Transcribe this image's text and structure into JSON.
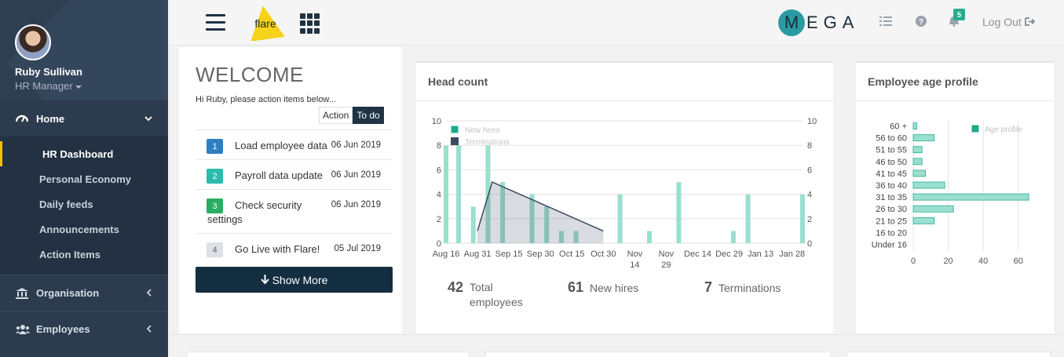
{
  "sidebar": {
    "user_name": "Ruby Sullivan",
    "user_role": "HR Manager",
    "home_label": "Home",
    "sub_items": [
      {
        "label": "HR Dashboard",
        "active": true
      },
      {
        "label": "Personal Economy"
      },
      {
        "label": "Daily feeds"
      },
      {
        "label": "Announcements"
      },
      {
        "label": "Action Items"
      }
    ],
    "organisation_label": "Organisation",
    "employees_label": "Employees",
    "active_accent": "#f2c200"
  },
  "header": {
    "flare_logo_text": "flare",
    "mega_logo_initial": "M",
    "mega_logo_rest": "EGA",
    "notification_count": "5",
    "logout_label": "Log Out"
  },
  "welcome": {
    "title": "WELCOME",
    "subtitle": "Hi Ruby, please action items below...",
    "toggle_action": "Action",
    "toggle_todo": "To do",
    "items": [
      {
        "num": "1",
        "text": "Load employee data",
        "date": "06 Jun 2019",
        "color": "#2d7fc1"
      },
      {
        "num": "2",
        "text": "Payroll data update",
        "date": "06 Jun 2019",
        "color": "#2bbcae"
      },
      {
        "num": "3",
        "text": "Check security settings",
        "date": "06 Jun 2019",
        "color": "#27ae60"
      },
      {
        "num": "4",
        "text": "Go Live with Flare!",
        "date": "05 Jul 2019",
        "color": "#b9bec4"
      }
    ],
    "show_more_label": "Show More"
  },
  "headcount": {
    "title": "Head count",
    "stats": [
      {
        "value": "42",
        "label": "Total employees"
      },
      {
        "value": "61",
        "label": "New hires"
      },
      {
        "value": "7",
        "label": "Terminations"
      }
    ]
  },
  "age_profile": {
    "title": "Employee age profile"
  },
  "chart_data": [
    {
      "type": "bar",
      "title": "Head count",
      "x_tick_labels": [
        "Aug 16",
        "Aug 31",
        "Sep 15",
        "Sep 30",
        "Oct 15",
        "Oct 30",
        "Nov 14",
        "Nov 29",
        "Dec 14",
        "Dec 29",
        "Jan 13",
        "Jan 28"
      ],
      "ylim": [
        0,
        10
      ],
      "y_ticks": [
        0,
        2,
        4,
        6,
        8,
        10
      ],
      "legend": [
        "New hires",
        "Terminations"
      ],
      "legend_position": "top-left",
      "grid": true,
      "series": [
        {
          "name": "New hires",
          "type": "bar",
          "color": "#9adfcf",
          "points": [
            {
              "x": "2018-08-16",
              "y": 8
            },
            {
              "x": "2018-08-22",
              "y": 8
            },
            {
              "x": "2018-08-29",
              "y": 3
            },
            {
              "x": "2018-09-05",
              "y": 8
            },
            {
              "x": "2018-09-12",
              "y": 5
            },
            {
              "x": "2018-09-26",
              "y": 4
            },
            {
              "x": "2018-10-03",
              "y": 3
            },
            {
              "x": "2018-10-10",
              "y": 1
            },
            {
              "x": "2018-10-17",
              "y": 1
            },
            {
              "x": "2018-11-07",
              "y": 4
            },
            {
              "x": "2018-11-21",
              "y": 1
            },
            {
              "x": "2018-12-05",
              "y": 5
            },
            {
              "x": "2018-12-31",
              "y": 1
            },
            {
              "x": "2019-01-07",
              "y": 4
            },
            {
              "x": "2019-02-02",
              "y": 4
            }
          ]
        },
        {
          "name": "Terminations",
          "type": "area",
          "color": "#3c4a5e",
          "points": [
            {
              "x": "2018-08-31",
              "y": 1
            },
            {
              "x": "2018-09-07",
              "y": 5
            },
            {
              "x": "2018-10-30",
              "y": 1
            }
          ]
        }
      ]
    },
    {
      "type": "bar",
      "orientation": "horizontal",
      "title": "Employee age profile",
      "categories": [
        "60 +",
        "56 to 60",
        "51 to 55",
        "46 to 50",
        "41 to 45",
        "36 to 40",
        "31 to 35",
        "26 to 30",
        "21 to 25",
        "16 to 20",
        "Under 16"
      ],
      "values": [
        2,
        12,
        5,
        5,
        7,
        18,
        66,
        23,
        12,
        0,
        0
      ],
      "xlim": [
        0,
        70
      ],
      "x_ticks": [
        0,
        20,
        40,
        60
      ],
      "legend": [
        "Age profile"
      ],
      "legend_position": "top-right",
      "color": "#9adfcf"
    }
  ]
}
